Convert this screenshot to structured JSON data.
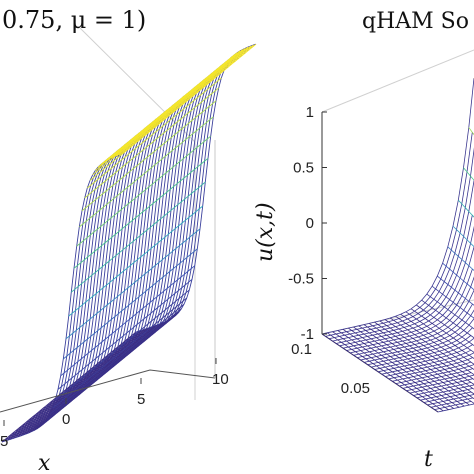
{
  "chart_data": [
    {
      "type": "surface",
      "title": "0.75,  μ = 1)",
      "xlabel": "x",
      "x_ticks": [
        "5",
        "0",
        "5",
        "10"
      ],
      "colormap": [
        "#3a2c82",
        "#3d56b8",
        "#2fa7c4",
        "#45c48d",
        "#a2d851",
        "#f7e72a"
      ],
      "surface": {
        "u_low": -1,
        "u_high": 1,
        "profile": "tanh front along x, u rising from -1 to 1",
        "x_range": [
          -10,
          10
        ]
      }
    },
    {
      "type": "surface",
      "title": "qHAM So",
      "zlabel": "u(x,t)",
      "tlabel": "t",
      "z_ticks": [
        "1",
        "0.5",
        "0",
        "-0.5",
        "-1"
      ],
      "t_ticks": [
        "0.1",
        "0.05"
      ],
      "zlim": [
        -1,
        1
      ],
      "t_range": [
        0,
        0.1
      ],
      "colormap": [
        "#3a2c82",
        "#3d56b8",
        "#2fa7c4",
        "#45c48d",
        "#a2d851",
        "#f7e72a"
      ]
    }
  ]
}
